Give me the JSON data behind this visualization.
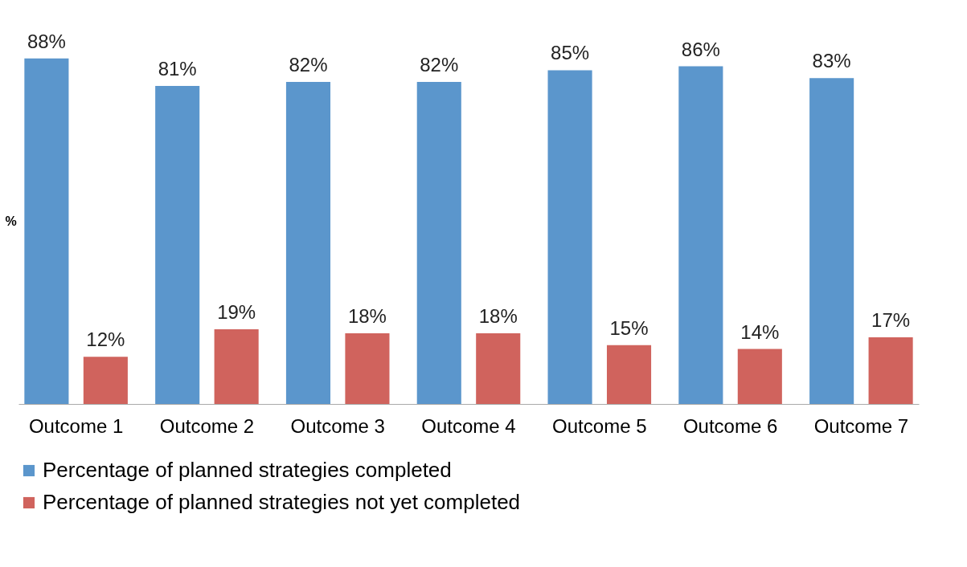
{
  "chart_data": {
    "type": "bar",
    "ylabel": "%",
    "categories": [
      "Outcome 1",
      "Outcome 2",
      "Outcome 3",
      "Outcome 4",
      "Outcome 5",
      "Outcome 6",
      "Outcome 7"
    ],
    "series": [
      {
        "name": "Percentage of planned strategies completed",
        "color": "#5b96cc",
        "values": [
          88,
          81,
          82,
          82,
          85,
          86,
          83
        ],
        "value_labels": [
          "88%",
          "81%",
          "82%",
          "82%",
          "85%",
          "86%",
          "83%"
        ]
      },
      {
        "name": "Percentage of planned strategies not yet completed",
        "color": "#d0635d",
        "values": [
          12,
          19,
          18,
          18,
          15,
          14,
          17
        ],
        "value_labels": [
          "12%",
          "19%",
          "18%",
          "18%",
          "15%",
          "14%",
          "17%"
        ]
      }
    ],
    "tick_labels": "x",
    "grid": false,
    "legend": "bottom left"
  }
}
